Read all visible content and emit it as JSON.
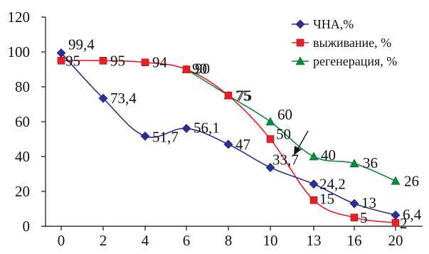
{
  "chart_data": {
    "type": "line",
    "title": "",
    "xlabel": "",
    "ylabel": "",
    "categories": [
      "0",
      "2",
      "4",
      "6",
      "8",
      "10",
      "13",
      "16",
      "20"
    ],
    "ylim": [
      0,
      120
    ],
    "yticks": [
      "0",
      "20",
      "40",
      "60",
      "80",
      "100",
      "120"
    ],
    "grid": false,
    "legend_position": "top-right",
    "series": [
      {
        "name": "ЧНА,%",
        "color": "#2a2f9a",
        "marker": "diamond",
        "values": [
          99.4,
          73.4,
          51.7,
          56.1,
          47,
          33.7,
          24.2,
          13,
          6.4
        ],
        "labels": [
          "99,4",
          "73,4",
          "51,7",
          "56,1",
          "47",
          "33,7",
          "24,2",
          "13",
          "6,4"
        ]
      },
      {
        "name": "выживание, %",
        "color": "#ee1c24",
        "marker": "square",
        "values": [
          95,
          95,
          94,
          90,
          75,
          50,
          15,
          5,
          2
        ],
        "labels": [
          "95",
          "95",
          "94",
          "90",
          "75",
          "50",
          "15",
          "5",
          "2"
        ]
      },
      {
        "name": "регенерация, %",
        "color": "#0a8a3a",
        "marker": "triangle",
        "values": [
          null,
          null,
          null,
          90,
          75,
          60,
          40,
          36,
          26
        ],
        "labels": [
          "",
          "",
          "",
          "90",
          "75",
          "60",
          "40",
          "36",
          "26"
        ]
      }
    ],
    "annotations": [
      {
        "type": "arrow",
        "direction": "down-left",
        "near_category": "13",
        "near_value": 40
      }
    ]
  }
}
